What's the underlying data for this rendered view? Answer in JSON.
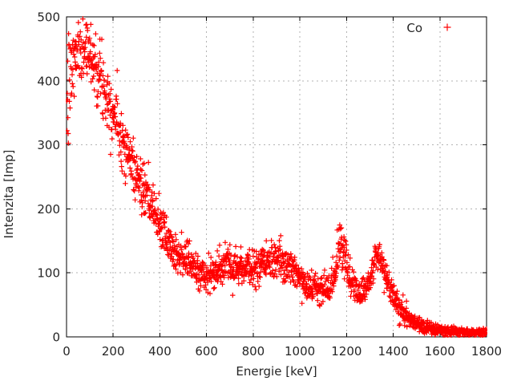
{
  "window": {
    "background": "#ffffff"
  },
  "chart_data": {
    "type": "scatter",
    "title": "",
    "xlabel": "Energie [keV]",
    "ylabel": "Intenzita [Imp]",
    "xlim": [
      0,
      1800
    ],
    "ylim": [
      0,
      500
    ],
    "xticks": [
      0,
      200,
      400,
      600,
      800,
      1000,
      1200,
      1400,
      1600,
      1800
    ],
    "yticks": [
      0,
      100,
      200,
      300,
      400,
      500
    ],
    "grid": "dashed-major",
    "grid_color": "#b3b3b3",
    "frame_color": "#000000",
    "legend": {
      "position": "top-right-inside",
      "entries": [
        {
          "label": "Co",
          "marker": "plus",
          "color": "#ff0000"
        }
      ]
    },
    "series": [
      {
        "name": "Co",
        "color": "#ff0000",
        "marker": "plus",
        "marker_size": 6.5,
        "sample_step_kev": 1,
        "noise_sigma_scale": 1.3,
        "low_energy_column": {
          "below_kev": 18,
          "sigma": 55
        },
        "seed": 7,
        "envelope": [
          [
            0,
            370
          ],
          [
            12,
            395
          ],
          [
            25,
            420
          ],
          [
            40,
            440
          ],
          [
            55,
            450
          ],
          [
            70,
            455
          ],
          [
            85,
            452
          ],
          [
            100,
            445
          ],
          [
            115,
            432
          ],
          [
            130,
            420
          ],
          [
            145,
            408
          ],
          [
            160,
            392
          ],
          [
            175,
            378
          ],
          [
            190,
            362
          ],
          [
            205,
            350
          ],
          [
            220,
            335
          ],
          [
            240,
            310
          ],
          [
            260,
            290
          ],
          [
            280,
            272
          ],
          [
            300,
            252
          ],
          [
            320,
            235
          ],
          [
            340,
            220
          ],
          [
            360,
            205
          ],
          [
            380,
            192
          ],
          [
            400,
            176
          ],
          [
            420,
            160
          ],
          [
            440,
            148
          ],
          [
            460,
            137
          ],
          [
            480,
            130
          ],
          [
            500,
            126
          ],
          [
            520,
            118
          ],
          [
            540,
            110
          ],
          [
            560,
            103
          ],
          [
            580,
            98
          ],
          [
            600,
            95
          ],
          [
            620,
            97
          ],
          [
            640,
            101
          ],
          [
            660,
            106
          ],
          [
            680,
            112
          ],
          [
            700,
            117
          ],
          [
            720,
            114
          ],
          [
            740,
            110
          ],
          [
            760,
            108
          ],
          [
            780,
            107
          ],
          [
            800,
            108
          ],
          [
            820,
            109
          ],
          [
            840,
            111
          ],
          [
            860,
            114
          ],
          [
            880,
            117
          ],
          [
            900,
            118
          ],
          [
            920,
            116
          ],
          [
            940,
            112
          ],
          [
            960,
            108
          ],
          [
            980,
            102
          ],
          [
            1000,
            95
          ],
          [
            1020,
            88
          ],
          [
            1040,
            81
          ],
          [
            1060,
            76
          ],
          [
            1080,
            72
          ],
          [
            1100,
            71
          ],
          [
            1120,
            76
          ],
          [
            1140,
            88
          ],
          [
            1155,
            110
          ],
          [
            1165,
            135
          ],
          [
            1173,
            150
          ],
          [
            1182,
            143
          ],
          [
            1192,
            125
          ],
          [
            1205,
            105
          ],
          [
            1220,
            88
          ],
          [
            1235,
            78
          ],
          [
            1250,
            72
          ],
          [
            1265,
            71
          ],
          [
            1280,
            76
          ],
          [
            1295,
            85
          ],
          [
            1310,
            100
          ],
          [
            1320,
            115
          ],
          [
            1330,
            128
          ],
          [
            1338,
            130
          ],
          [
            1348,
            122
          ],
          [
            1360,
            108
          ],
          [
            1375,
            90
          ],
          [
            1390,
            75
          ],
          [
            1405,
            62
          ],
          [
            1420,
            51
          ],
          [
            1435,
            42
          ],
          [
            1450,
            34
          ],
          [
            1465,
            28
          ],
          [
            1480,
            24
          ],
          [
            1495,
            21
          ],
          [
            1515,
            17
          ],
          [
            1540,
            14
          ],
          [
            1570,
            12
          ],
          [
            1600,
            11
          ],
          [
            1650,
            9
          ],
          [
            1700,
            8
          ],
          [
            1750,
            7
          ],
          [
            1800,
            7
          ]
        ]
      }
    ]
  }
}
